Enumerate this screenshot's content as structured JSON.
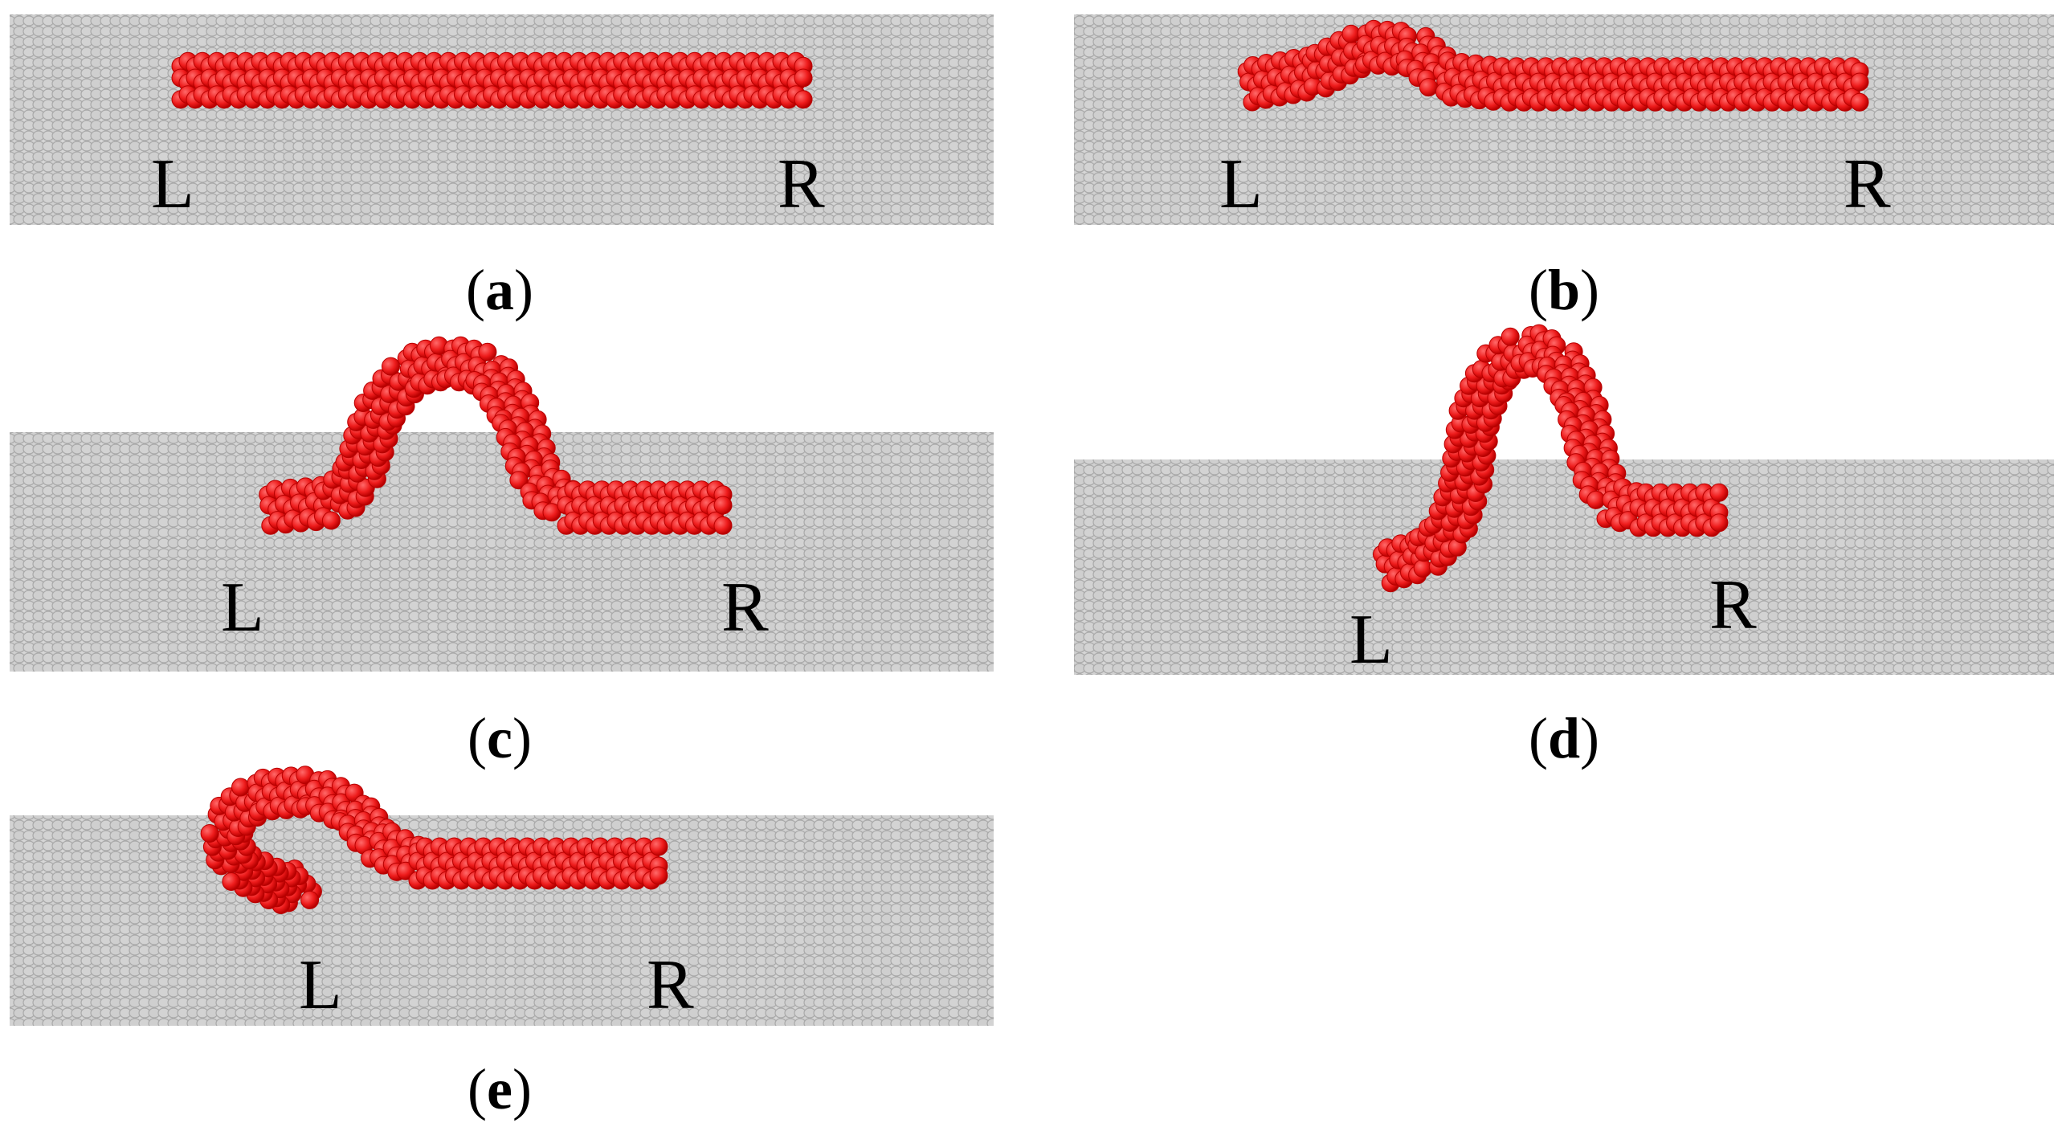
{
  "colors": {
    "substrate": "#c6c6c6",
    "substrate_atom_outline": "#a9a9a9",
    "chain": "#ee1c1c",
    "chain_atom_outline": "#b80000",
    "text": "#000000"
  },
  "panels": [
    {
      "id": "a",
      "caption_letter": "a",
      "left_label": "L",
      "right_label": "R"
    },
    {
      "id": "b",
      "caption_letter": "b",
      "left_label": "L",
      "right_label": "R"
    },
    {
      "id": "c",
      "caption_letter": "c",
      "left_label": "L",
      "right_label": "R"
    },
    {
      "id": "d",
      "caption_letter": "d",
      "left_label": "L",
      "right_label": "R"
    },
    {
      "id": "e",
      "caption_letter": "e",
      "left_label": "L",
      "right_label": "R"
    }
  ],
  "caption_open": "(",
  "caption_close": ")"
}
